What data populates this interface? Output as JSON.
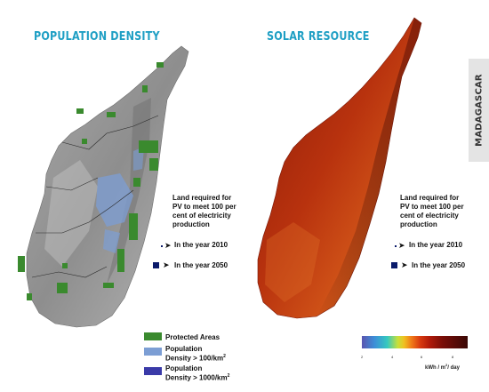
{
  "titles": {
    "population": "POPULATION DENSITY",
    "solar": "SOLAR RESOURCE"
  },
  "country_label": "MADAGASCAR",
  "land_note": {
    "line1": "Land required for",
    "line2": "PV to meet 100 per",
    "line3": "cent of electricity",
    "line4": "production"
  },
  "years": {
    "y2010": "In the year 2010",
    "y2050": "In the year 2050"
  },
  "legend": {
    "protected": "Protected Areas",
    "density100_line1": "Population",
    "density100_line2": "Density > 100/km",
    "density1000_line1": "Population",
    "density1000_line2": "Density > 1000/km",
    "superscript": "2"
  },
  "colors": {
    "title": "#1f9fc4",
    "protected": "#3a8a2e",
    "density100": "#7c9ed4",
    "density1000": "#3a3aa8",
    "solar_low": "#5a55b0",
    "solar_high": "#3a0806"
  },
  "solar_scale": {
    "ticks": [
      "2",
      "4",
      "6",
      "8"
    ],
    "unit_prefix": "kWh / m",
    "unit_sup": "2",
    "unit_suffix": "/ day"
  }
}
